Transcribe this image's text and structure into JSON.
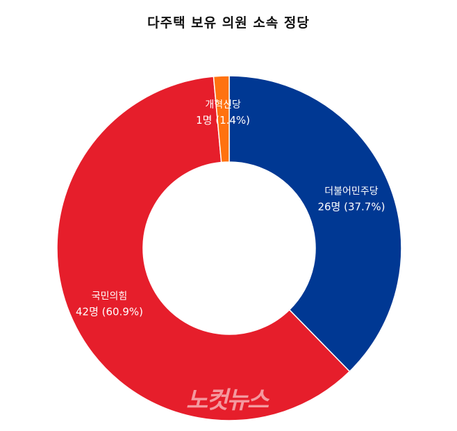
{
  "chart_data": {
    "type": "pie",
    "style": "donut",
    "title": "다주택 보유 의원 소속 정당",
    "slices": [
      {
        "label": "더불어민주당",
        "value": 26,
        "display": "26명 (37.7%)",
        "color": "#003893"
      },
      {
        "label": "국민의힘",
        "value": 42,
        "display": "42명 (60.9%)",
        "color": "#E61E2B"
      },
      {
        "label": "개혁신당",
        "value": 1,
        "display": "1명 (1.4%)",
        "color": "#FF7210"
      }
    ],
    "start": "12 o'clock",
    "direction": "clockwise",
    "legend": "none"
  },
  "watermark": "노컷뉴스"
}
